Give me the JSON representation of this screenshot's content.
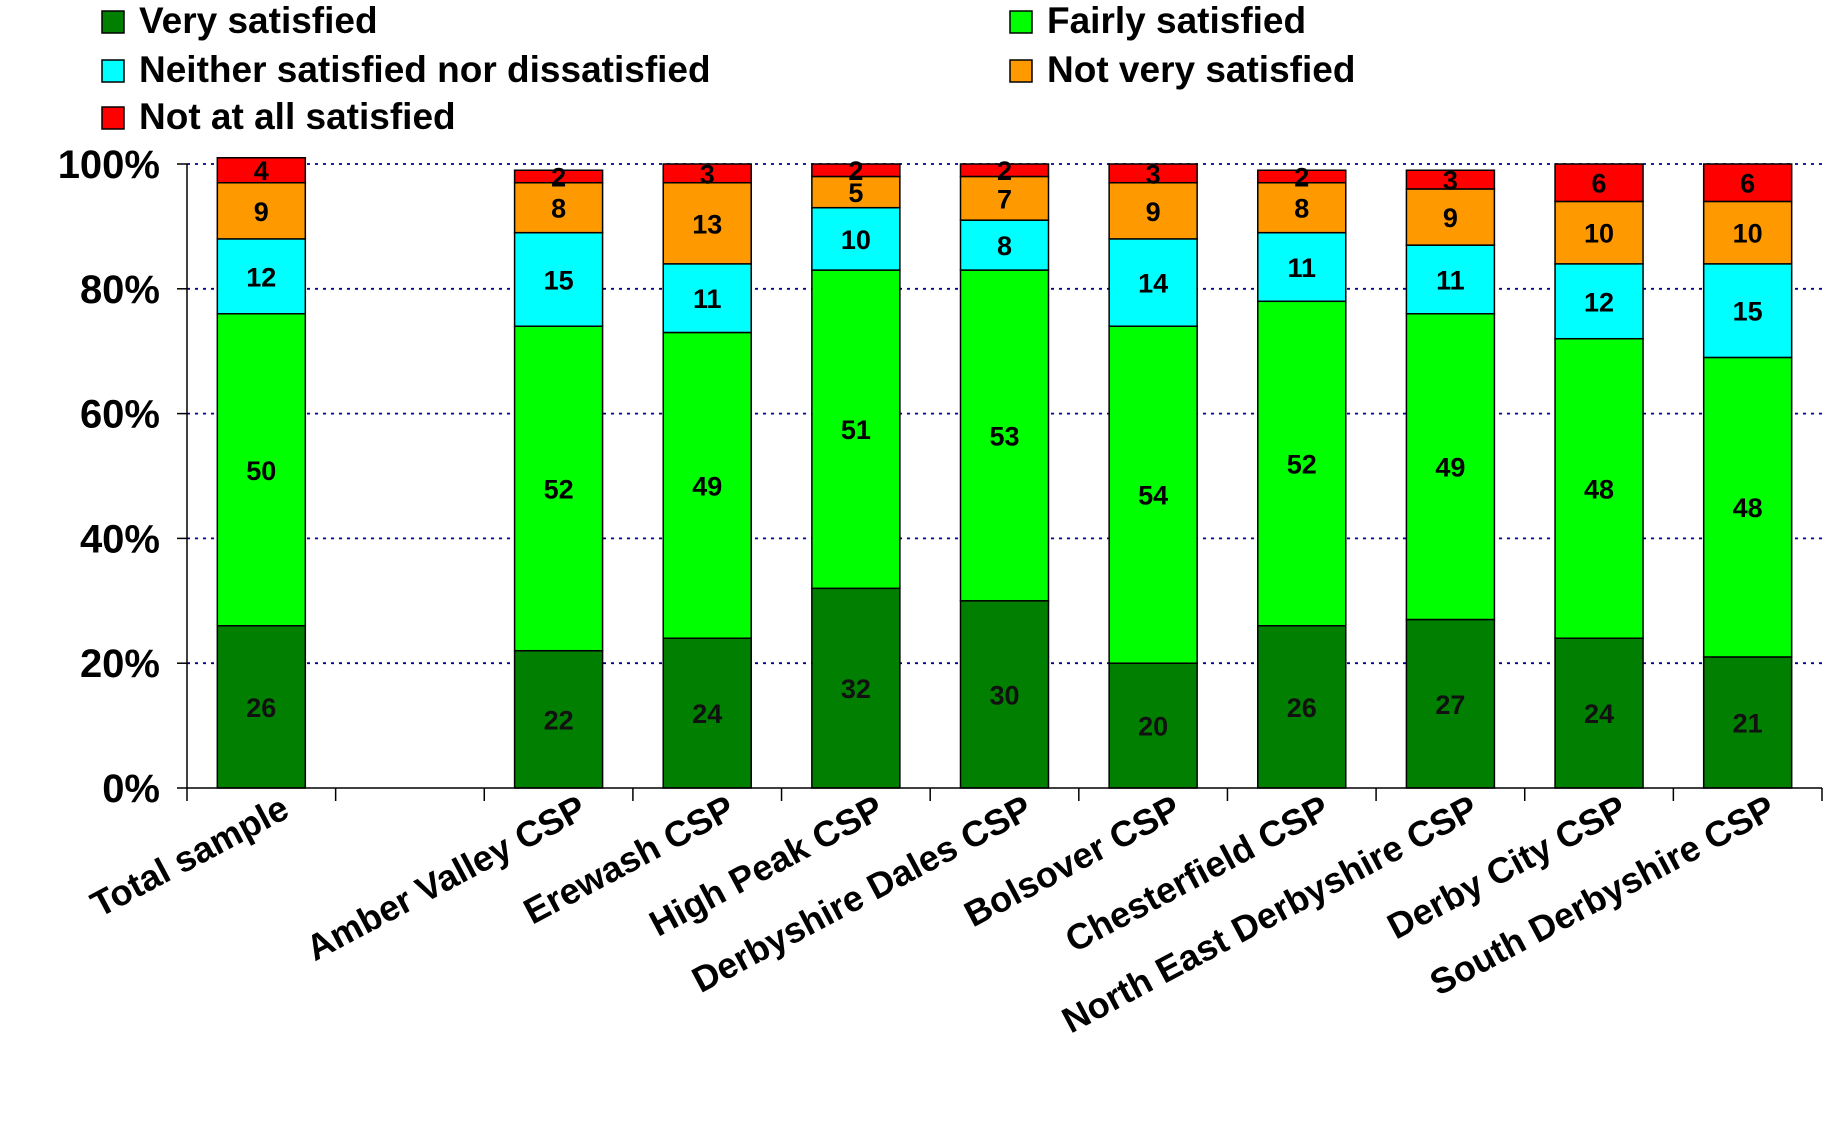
{
  "chart_data": {
    "type": "bar",
    "stacked": true,
    "percent_stacked": true,
    "title": "",
    "xlabel": "",
    "ylabel": "",
    "ylim": [
      0,
      100
    ],
    "y_ticks": [
      "0%",
      "20%",
      "40%",
      "60%",
      "80%",
      "100%"
    ],
    "grid": "horizontal dotted",
    "legend_position": "top",
    "categories": [
      "Total sample",
      "",
      "Amber Valley CSP",
      "Erewash CSP",
      "High Peak CSP",
      "Derbyshire Dales CSP",
      "Bolsover CSP",
      "Chesterfield CSP",
      "North East Derbyshire CSP",
      "Derby City CSP",
      "South Derbyshire CSP"
    ],
    "series": [
      {
        "name": "Very satisfied",
        "color": "#007f00",
        "values": [
          26,
          null,
          22,
          24,
          32,
          30,
          20,
          26,
          27,
          24,
          21
        ]
      },
      {
        "name": "Fairly satisfied",
        "color": "#00ff00",
        "values": [
          50,
          null,
          52,
          49,
          51,
          53,
          54,
          52,
          49,
          48,
          48
        ]
      },
      {
        "name": "Neither satisfied nor dissatisfied",
        "color": "#00ffff",
        "values": [
          12,
          null,
          15,
          11,
          10,
          8,
          14,
          11,
          11,
          12,
          15
        ]
      },
      {
        "name": "Not very satisfied",
        "color": "#ff9900",
        "values": [
          9,
          null,
          8,
          13,
          5,
          7,
          9,
          8,
          9,
          10,
          10
        ]
      },
      {
        "name": "Not at all satisfied",
        "color": "#ff0000",
        "values": [
          4,
          null,
          2,
          3,
          2,
          2,
          3,
          2,
          3,
          6,
          6
        ]
      }
    ]
  }
}
